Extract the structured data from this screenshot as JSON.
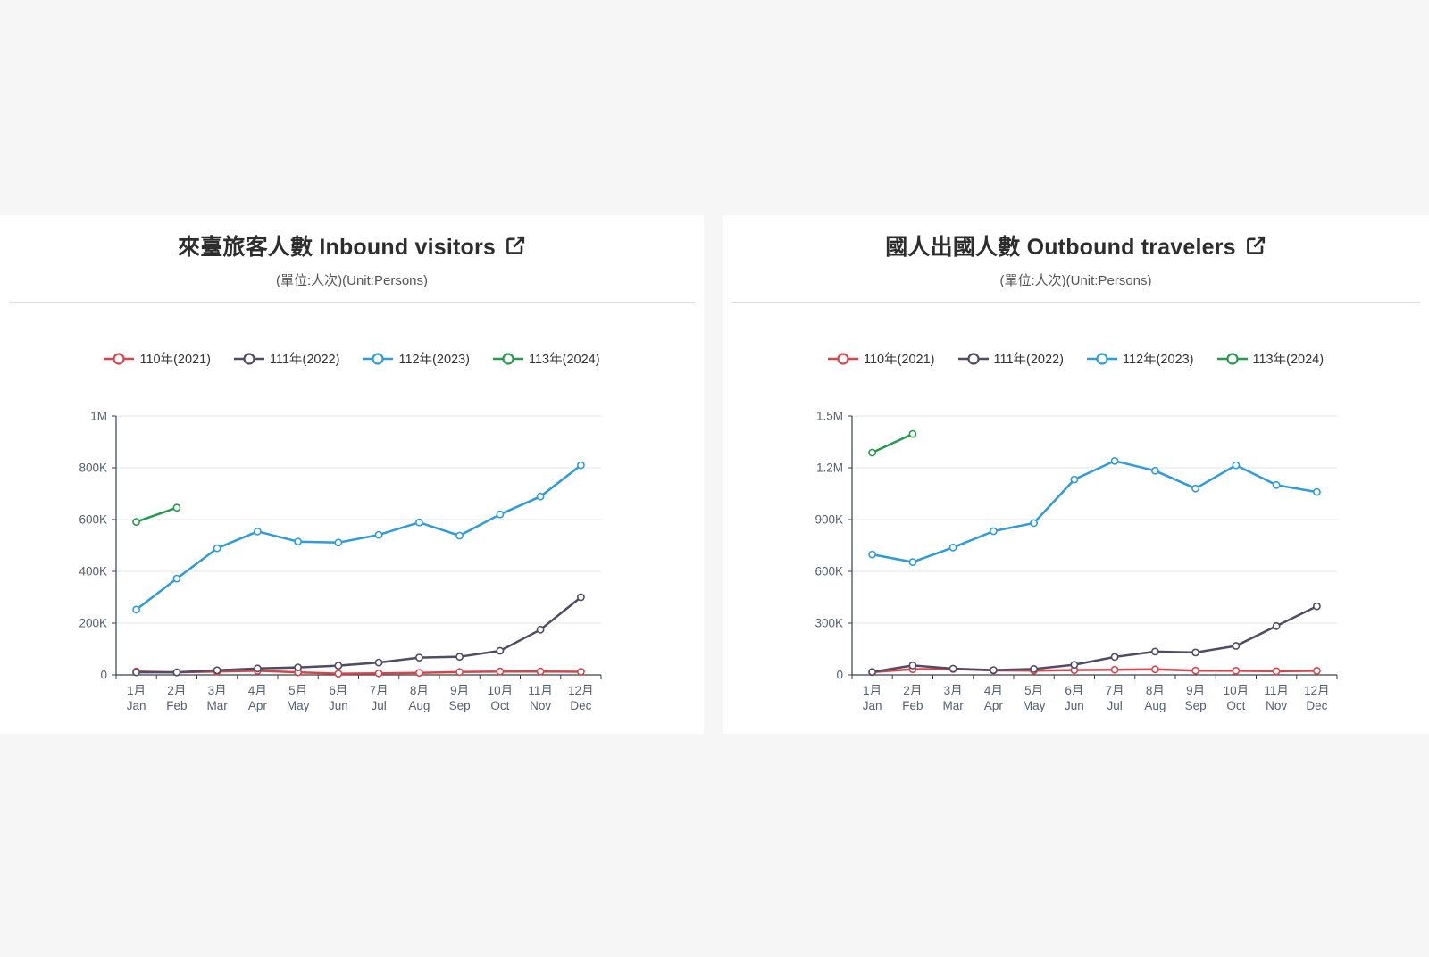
{
  "page": {
    "background": "#f6f6f6",
    "panel_background": "#ffffff"
  },
  "icons": {
    "external_link": "external-link-icon",
    "legend_marker": "line-circle-marker-icon"
  },
  "chart_data": [
    {
      "type": "line",
      "title": "來臺旅客人數 Inbound visitors",
      "subtitle": "(單位:人次)(Unit:Persons)",
      "unit": "Persons",
      "legend_position": "top",
      "grid": true,
      "ylim": [
        0,
        1000000
      ],
      "yticks": [
        {
          "value": 0,
          "label": "0"
        },
        {
          "value": 200000,
          "label": "200K"
        },
        {
          "value": 400000,
          "label": "400K"
        },
        {
          "value": 600000,
          "label": "600K"
        },
        {
          "value": 800000,
          "label": "800K"
        },
        {
          "value": 1000000,
          "label": "1M"
        }
      ],
      "categories_zh": [
        "1月",
        "2月",
        "3月",
        "4月",
        "5月",
        "6月",
        "7月",
        "8月",
        "9月",
        "10月",
        "11月",
        "12月"
      ],
      "categories_en": [
        "Jan",
        "Feb",
        "Mar",
        "Apr",
        "May",
        "Jun",
        "Jul",
        "Aug",
        "Sep",
        "Oct",
        "Nov",
        "Dec"
      ],
      "series": [
        {
          "name": "110年(2021)",
          "color": "#d8444c",
          "values": [
            13000,
            10000,
            13000,
            16000,
            10000,
            5000,
            6000,
            8000,
            11000,
            13000,
            13000,
            12000
          ]
        },
        {
          "name": "111年(2022)",
          "color": "#524c63",
          "values": [
            10000,
            10000,
            18000,
            25000,
            29000,
            36000,
            48000,
            67000,
            70000,
            93000,
            175000,
            300000
          ]
        },
        {
          "name": "112年(2023)",
          "color": "#2f9bd8",
          "values": [
            252000,
            372000,
            489000,
            554000,
            515000,
            511000,
            541000,
            589000,
            538000,
            620000,
            689000,
            810000
          ]
        },
        {
          "name": "113年(2024)",
          "color": "#27994f",
          "values": [
            591000,
            646000
          ]
        }
      ]
    },
    {
      "type": "line",
      "title": "國人出國人數 Outbound travelers",
      "subtitle": "(單位:人次)(Unit:Persons)",
      "unit": "Persons",
      "legend_position": "top",
      "grid": true,
      "ylim": [
        0,
        1500000
      ],
      "yticks": [
        {
          "value": 0,
          "label": "0"
        },
        {
          "value": 300000,
          "label": "300K"
        },
        {
          "value": 600000,
          "label": "600K"
        },
        {
          "value": 900000,
          "label": "900K"
        },
        {
          "value": 1200000,
          "label": "1.2M"
        },
        {
          "value": 1500000,
          "label": "1.5M"
        }
      ],
      "categories_zh": [
        "1月",
        "2月",
        "3月",
        "4月",
        "5月",
        "6月",
        "7月",
        "8月",
        "9月",
        "10月",
        "11月",
        "12月"
      ],
      "categories_en": [
        "Jan",
        "Feb",
        "Mar",
        "Apr",
        "May",
        "Jun",
        "Jul",
        "Aug",
        "Sep",
        "Oct",
        "Nov",
        "Dec"
      ],
      "series": [
        {
          "name": "110年(2021)",
          "color": "#d8444c",
          "values": [
            16000,
            33000,
            34000,
            26000,
            25000,
            28000,
            30000,
            32000,
            25000,
            24000,
            21000,
            24000
          ]
        },
        {
          "name": "111年(2022)",
          "color": "#524c63",
          "values": [
            17000,
            55000,
            36000,
            28000,
            34000,
            59000,
            104000,
            135000,
            130000,
            168000,
            283000,
            398000
          ]
        },
        {
          "name": "112年(2023)",
          "color": "#2f9bd8",
          "values": [
            698000,
            654000,
            738000,
            833000,
            880000,
            1132000,
            1240000,
            1183000,
            1080000,
            1215000,
            1100000,
            1060000
          ]
        },
        {
          "name": "113年(2024)",
          "color": "#27994f",
          "values": [
            1288000,
            1396000
          ]
        }
      ]
    }
  ],
  "axis_style": {
    "label_color": "#55606b",
    "axis_color": "#37424a",
    "grid_color": "#e6e6e6",
    "title_color": "#2d2d2d",
    "subtitle_color": "#555555"
  }
}
